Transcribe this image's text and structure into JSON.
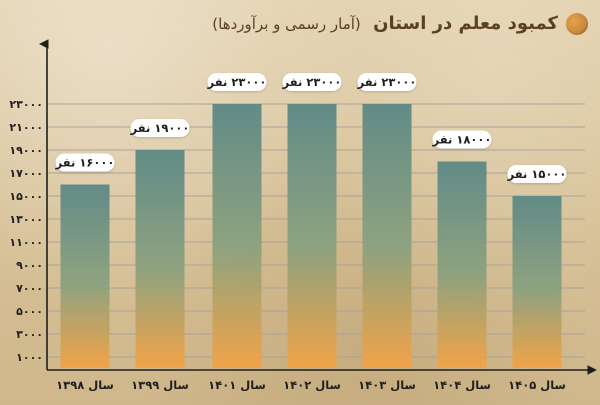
{
  "header": {
    "title": "کمبود معلم در استان",
    "subtitle": "(آمار رسمی و برآوردها)"
  },
  "colors": {
    "background": "#d9c7a1",
    "bar_top": "#5f8a86",
    "bar_bottom": "#f2a347",
    "grid": "#a5a09a",
    "axis": "#1e1e1e",
    "title": "#5b4026",
    "accent_dot": "#c98a3b"
  },
  "chart_data": {
    "type": "bar",
    "categories": [
      "سال ۱۳۹۸",
      "سال ۱۳۹۹",
      "سال ۱۴۰۱",
      "سال ۱۴۰۲",
      "سال ۱۴۰۳",
      "سال ۱۴۰۴",
      "سال ۱۴۰۵"
    ],
    "values": [
      16000,
      19000,
      23000,
      23000,
      23000,
      18000,
      15000
    ],
    "value_labels": [
      "۱۶۰۰۰ نفر",
      "۱۹۰۰۰ نفر",
      "۲۳۰۰۰ نفر",
      "۲۳۰۰۰ نفر",
      "۲۳۰۰۰ نفر",
      "۱۸۰۰۰ نفر",
      "۱۵۰۰۰ نفر"
    ],
    "y_ticks": [
      1000,
      3000,
      5000,
      7000,
      9000,
      11000,
      13000,
      15000,
      17000,
      19000,
      21000,
      23000
    ],
    "y_tick_labels": [
      "۱۰۰۰",
      "۳۰۰۰",
      "۵۰۰۰",
      "۷۰۰۰",
      "۹۰۰۰",
      "۱۱۰۰۰",
      "۱۳۰۰۰",
      "۱۵۰۰۰",
      "۱۷۰۰۰",
      "۱۹۰۰۰",
      "۲۱۰۰۰",
      "۲۳۰۰۰"
    ],
    "ylim": [
      0,
      23000
    ],
    "grid": true,
    "legend": "none",
    "xlabel": "",
    "ylabel": ""
  }
}
